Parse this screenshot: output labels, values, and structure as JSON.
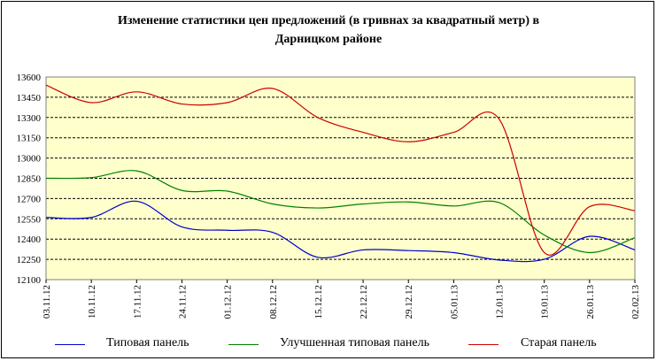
{
  "chart_data": {
    "type": "line",
    "title": "Изменение статистики цен предложений (в гривнах за квадратный метр) в",
    "subtitle": "Дарницком районе",
    "x": [
      "03.11.12",
      "10.11.12",
      "17.11.12",
      "24.11.12",
      "01.12.12",
      "08.12.12",
      "15.12.12",
      "22.12.12",
      "29.12.12",
      "05.01.13",
      "12.01.13",
      "19.01.13",
      "26.01.13",
      "02.02.13"
    ],
    "yticks": [
      12100,
      12250,
      12400,
      12550,
      12700,
      12850,
      13000,
      13150,
      13300,
      13450,
      13600
    ],
    "ylim": [
      12100,
      13600
    ],
    "grid": true,
    "plot_background": "#ffffcc",
    "legend_position": "bottom",
    "series": [
      {
        "name": "Типовая панель",
        "color": "#0000cc",
        "values": [
          12560,
          12560,
          12680,
          12490,
          12465,
          12450,
          12265,
          12320,
          12315,
          12300,
          12245,
          12250,
          12420,
          12320
        ]
      },
      {
        "name": "Улучшенная типовая панель",
        "color": "#008000",
        "values": [
          12850,
          12855,
          12905,
          12760,
          12755,
          12660,
          12630,
          12660,
          12675,
          12645,
          12670,
          12430,
          12300,
          12410
        ]
      },
      {
        "name": "Старая панель",
        "color": "#cc0000",
        "values": [
          13540,
          13410,
          13490,
          13400,
          13410,
          13515,
          13300,
          13190,
          13120,
          13190,
          13290,
          12300,
          12640,
          12610
        ]
      }
    ]
  }
}
